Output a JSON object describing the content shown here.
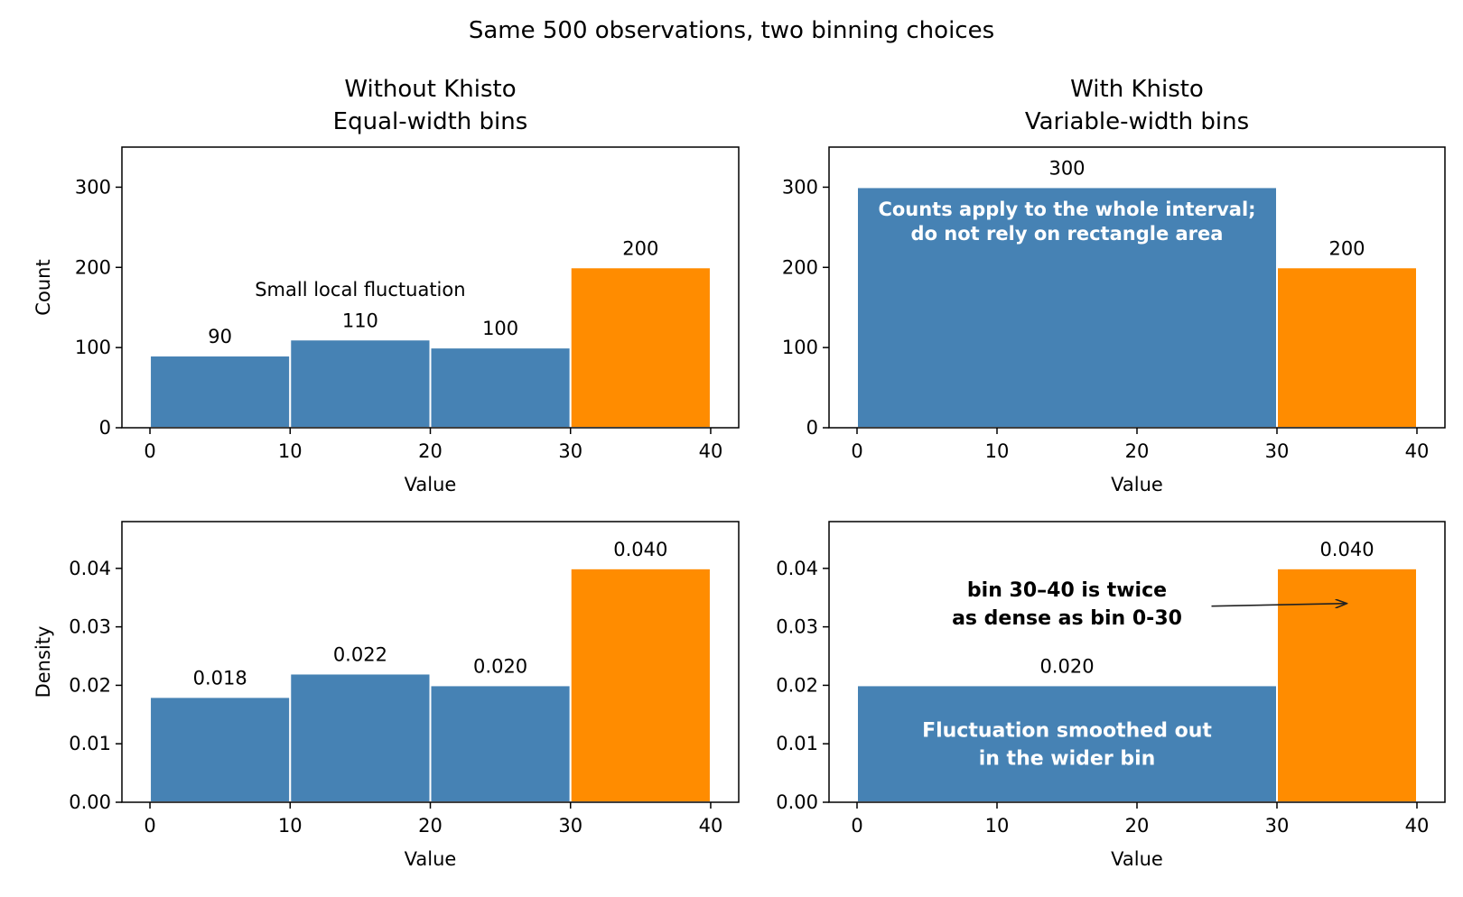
{
  "figure": {
    "title": "Same 500 observations, two binning choices",
    "colors": {
      "regular": "#4682b4",
      "highlight": "#ff8c00"
    }
  },
  "chart_data": [
    {
      "type": "bar",
      "title": "Without Khisto\nEqual-width bins",
      "xlabel": "Value",
      "ylabel": "Count",
      "xlim": [
        -2,
        42
      ],
      "ylim": [
        0,
        350
      ],
      "xticks": [
        0,
        10,
        20,
        30,
        40
      ],
      "yticks": [
        0,
        100,
        200,
        300
      ],
      "ytick_labels": [
        "0",
        "100",
        "200",
        "300"
      ],
      "bins": [
        {
          "start": 0,
          "end": 10,
          "value": 90,
          "label": "90",
          "highlight": false
        },
        {
          "start": 10,
          "end": 20,
          "value": 110,
          "label": "110",
          "highlight": false
        },
        {
          "start": 20,
          "end": 30,
          "value": 100,
          "label": "100",
          "highlight": false
        },
        {
          "start": 30,
          "end": 40,
          "value": 200,
          "label": "200",
          "highlight": true
        }
      ],
      "annotations": [
        {
          "text": "Small local fluctuation",
          "x": 15,
          "y": 175,
          "style": "plain"
        }
      ]
    },
    {
      "type": "bar",
      "title": "With Khisto\nVariable-width bins",
      "xlabel": "Value",
      "ylabel": "",
      "xlim": [
        -2,
        42
      ],
      "ylim": [
        0,
        350
      ],
      "xticks": [
        0,
        10,
        20,
        30,
        40
      ],
      "yticks": [
        0,
        100,
        200,
        300
      ],
      "ytick_labels": [
        "0",
        "100",
        "200",
        "300"
      ],
      "bins": [
        {
          "start": 0,
          "end": 30,
          "value": 300,
          "label": "300",
          "highlight": false
        },
        {
          "start": 30,
          "end": 40,
          "value": 200,
          "label": "200",
          "highlight": true
        }
      ],
      "annotations": [
        {
          "text": "Counts apply to the whole interval;\ndo not rely on rectangle area",
          "x": 15,
          "y": 260,
          "style": "white"
        }
      ]
    },
    {
      "type": "bar",
      "title": "",
      "xlabel": "Value",
      "ylabel": "Density",
      "xlim": [
        -2,
        42
      ],
      "ylim": [
        0,
        0.048
      ],
      "xticks": [
        0,
        10,
        20,
        30,
        40
      ],
      "yticks": [
        0,
        0.01,
        0.02,
        0.03,
        0.04
      ],
      "ytick_labels": [
        "0.00",
        "0.01",
        "0.02",
        "0.03",
        "0.04"
      ],
      "bins": [
        {
          "start": 0,
          "end": 10,
          "value": 0.018,
          "label": "0.018",
          "highlight": false
        },
        {
          "start": 10,
          "end": 20,
          "value": 0.022,
          "label": "0.022",
          "highlight": false
        },
        {
          "start": 20,
          "end": 30,
          "value": 0.02,
          "label": "0.020",
          "highlight": false
        },
        {
          "start": 30,
          "end": 40,
          "value": 0.04,
          "label": "0.040",
          "highlight": true
        }
      ],
      "annotations": []
    },
    {
      "type": "bar",
      "title": "",
      "xlabel": "Value",
      "ylabel": "",
      "xlim": [
        -2,
        42
      ],
      "ylim": [
        0,
        0.048
      ],
      "xticks": [
        0,
        10,
        20,
        30,
        40
      ],
      "yticks": [
        0,
        0.01,
        0.02,
        0.03,
        0.04
      ],
      "ytick_labels": [
        "0.00",
        "0.01",
        "0.02",
        "0.03",
        "0.04"
      ],
      "bins": [
        {
          "start": 0,
          "end": 30,
          "value": 0.02,
          "label": "0.020",
          "highlight": false
        },
        {
          "start": 30,
          "end": 40,
          "value": 0.04,
          "label": "0.040",
          "highlight": true
        }
      ],
      "annotations": [
        {
          "text": "Fluctuation smoothed out\nin the wider bin",
          "x": 15,
          "y": 0.0105,
          "style": "white-large"
        },
        {
          "text": "bin 30–40 is twice\nas dense as bin 0-30",
          "x": 15,
          "y": 0.0345,
          "style": "bold",
          "arrow_to": [
            35,
            0.034
          ]
        }
      ]
    }
  ]
}
